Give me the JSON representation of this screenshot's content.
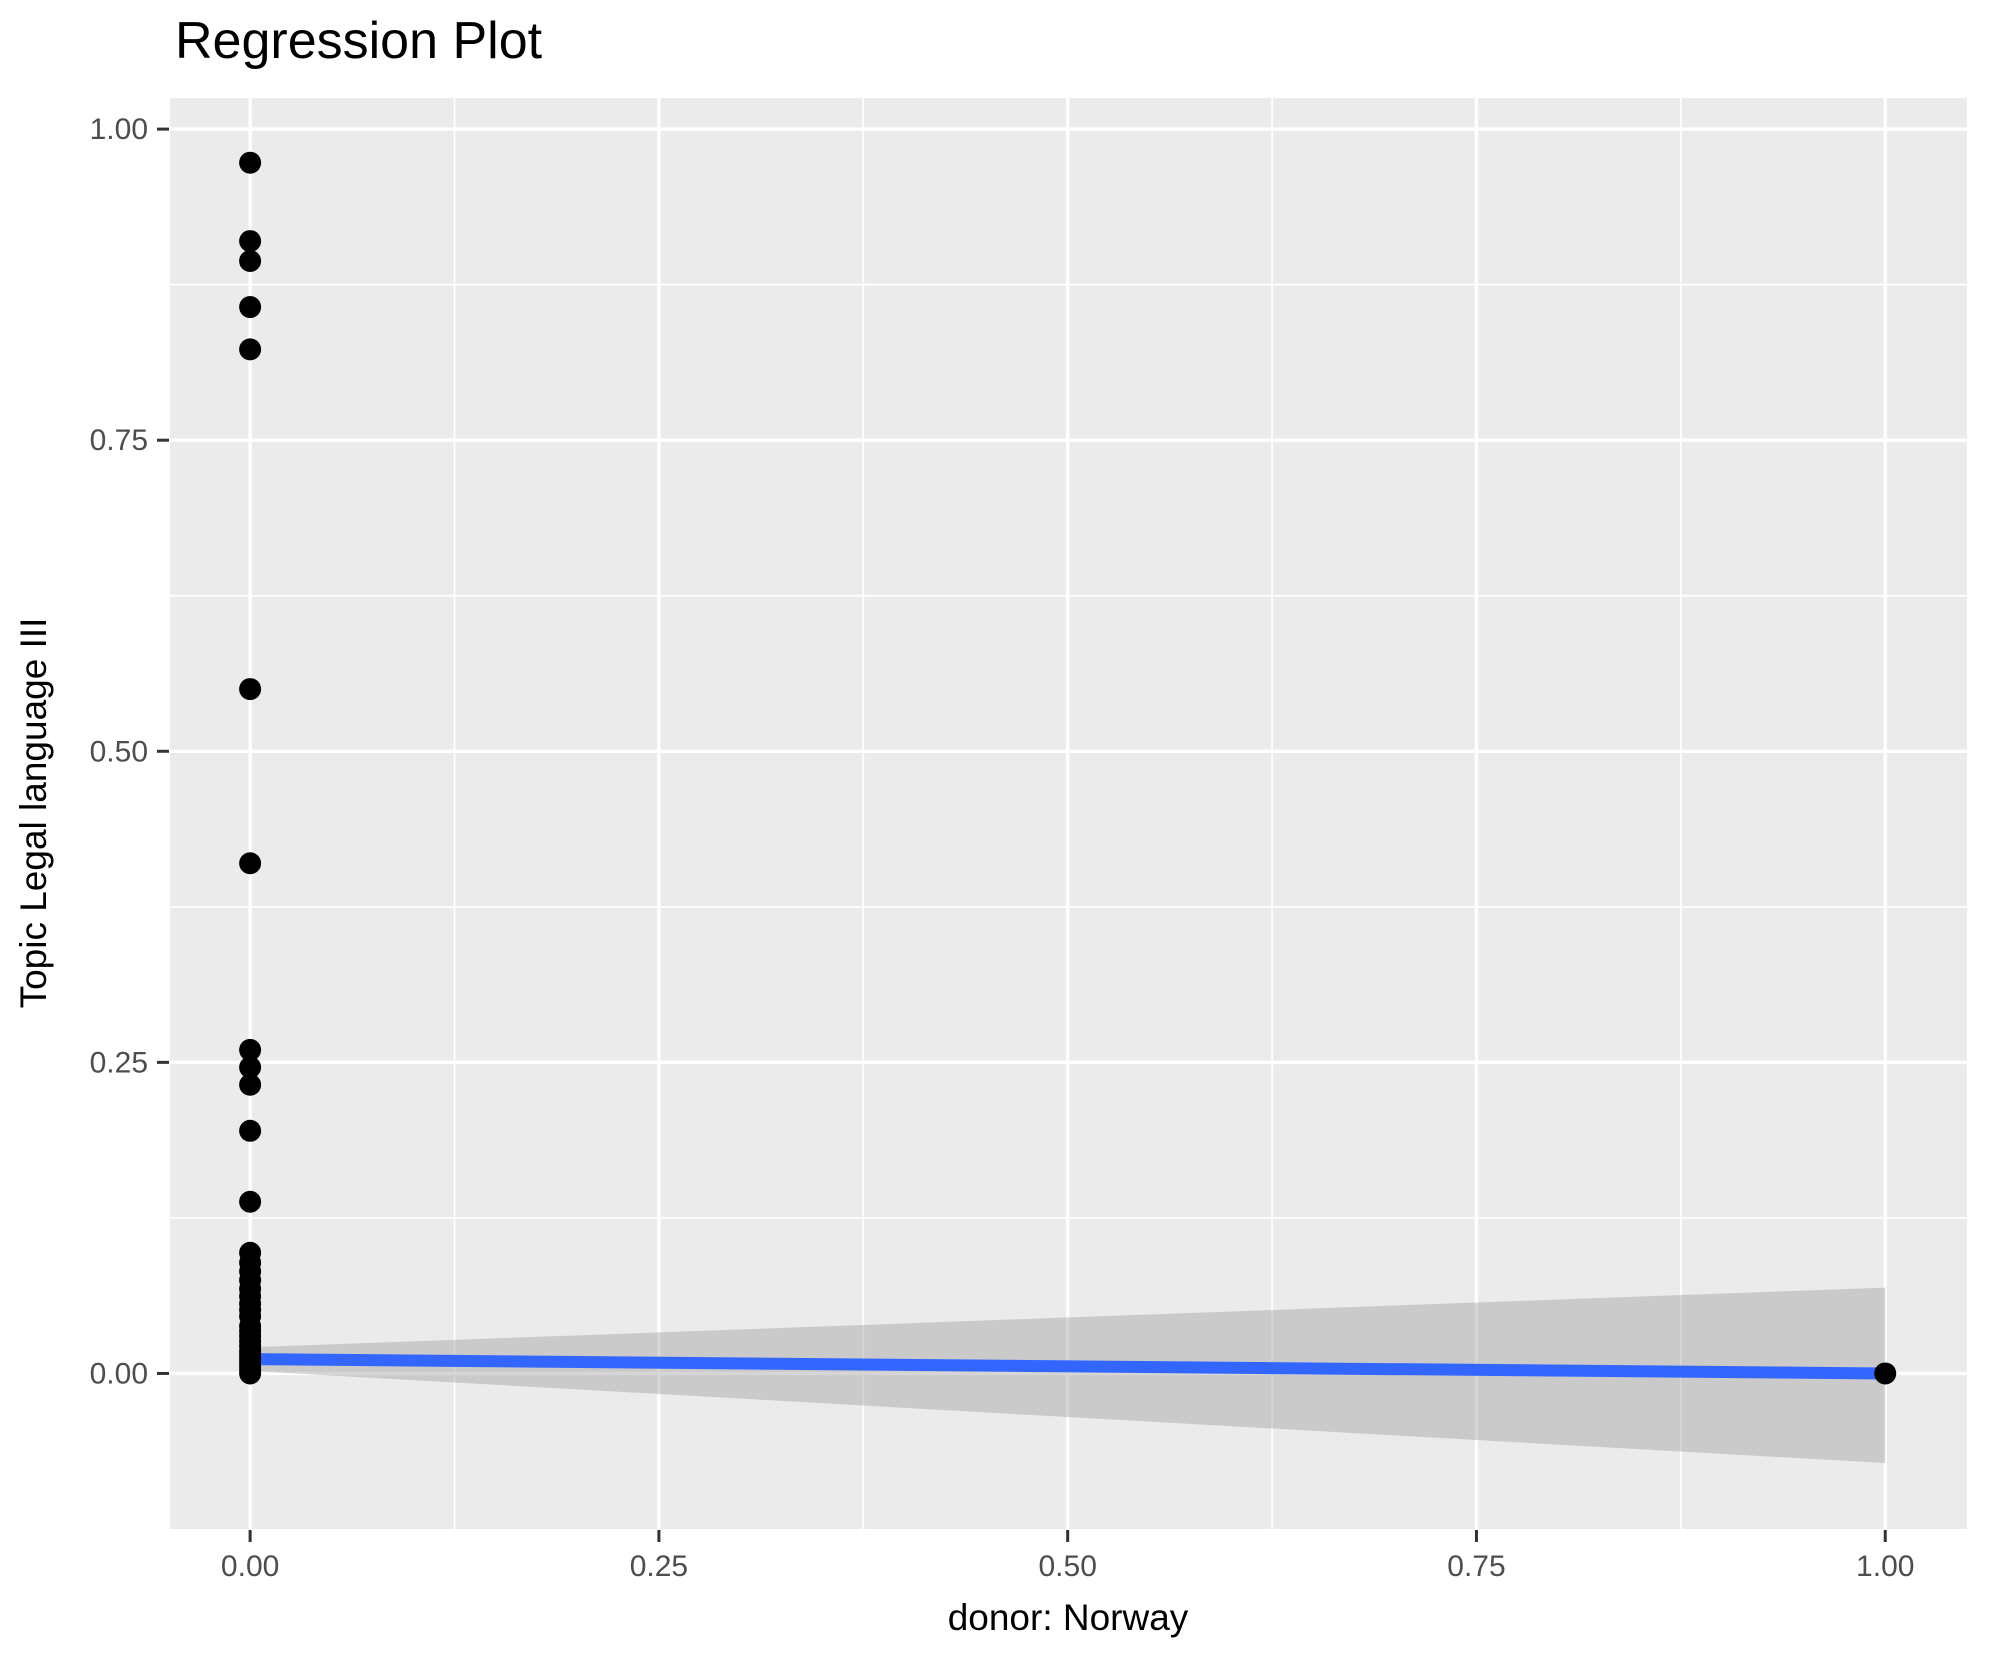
{
  "chart_data": {
    "type": "scatter",
    "title": "Regression Plot",
    "xlabel": "donor: Norway",
    "ylabel": "Topic Legal language III",
    "x_axis": {
      "tick_values": [
        0.0,
        0.25,
        0.5,
        0.75,
        1.0
      ],
      "tick_labels": [
        "0.00",
        "0.25",
        "0.50",
        "0.75",
        "1.00"
      ],
      "minor_values": [
        0.125,
        0.375,
        0.625,
        0.875
      ],
      "lim": [
        -0.049,
        1.05
      ]
    },
    "y_axis": {
      "tick_values": [
        0.0,
        0.25,
        0.5,
        0.75,
        1.0
      ],
      "tick_labels": [
        "0.00",
        "0.25",
        "0.50",
        "0.75",
        "1.00"
      ],
      "minor_values": [
        0.125,
        0.375,
        0.625,
        0.875
      ],
      "lim": [
        -0.125,
        1.025
      ]
    },
    "grid": "on",
    "legend": "none",
    "points": [
      {
        "x": 0,
        "y": 0.973
      },
      {
        "x": 0,
        "y": 0.91
      },
      {
        "x": 0,
        "y": 0.894
      },
      {
        "x": 0,
        "y": 0.857
      },
      {
        "x": 0,
        "y": 0.823
      },
      {
        "x": 0,
        "y": 0.55
      },
      {
        "x": 0,
        "y": 0.41
      },
      {
        "x": 0,
        "y": 0.26
      },
      {
        "x": 0,
        "y": 0.246
      },
      {
        "x": 0,
        "y": 0.232
      },
      {
        "x": 0,
        "y": 0.195
      },
      {
        "x": 0,
        "y": 0.138
      },
      {
        "x": 0,
        "y": 0.097
      },
      {
        "x": 0,
        "y": 0.089
      },
      {
        "x": 0,
        "y": 0.082
      },
      {
        "x": 0,
        "y": 0.075
      },
      {
        "x": 0,
        "y": 0.068
      },
      {
        "x": 0,
        "y": 0.062
      },
      {
        "x": 0,
        "y": 0.056
      },
      {
        "x": 0,
        "y": 0.051
      },
      {
        "x": 0,
        "y": 0.046
      },
      {
        "x": 0,
        "y": 0.038
      },
      {
        "x": 0,
        "y": 0.034
      },
      {
        "x": 0,
        "y": 0.03
      },
      {
        "x": 0,
        "y": 0.026
      },
      {
        "x": 0,
        "y": 0.022
      },
      {
        "x": 0,
        "y": 0.018
      },
      {
        "x": 0,
        "y": 0.015
      },
      {
        "x": 0,
        "y": 0.012
      },
      {
        "x": 0,
        "y": 0.009
      },
      {
        "x": 0,
        "y": 0.006
      },
      {
        "x": 0,
        "y": 0.003
      },
      {
        "x": 0,
        "y": 0.0
      },
      {
        "x": 1,
        "y": 0.0
      }
    ],
    "regression_line": {
      "x": [
        0,
        1
      ],
      "y": [
        0.0115,
        0.0
      ]
    },
    "confidence_band": {
      "x": [
        0,
        1
      ],
      "upper": [
        0.021,
        0.069
      ],
      "lower": [
        0.002,
        -0.072
      ]
    },
    "colors": {
      "point": "#000000",
      "line": "#3366FF",
      "band": "#999999",
      "band_opacity": 0.4,
      "panel_background": "#EBEBEB",
      "gridline": "#FFFFFF",
      "tick_label_text": "#4D4D4D",
      "axis_title_text": "#000000",
      "title_text": "#000000",
      "tick_mark": "#333333"
    }
  }
}
